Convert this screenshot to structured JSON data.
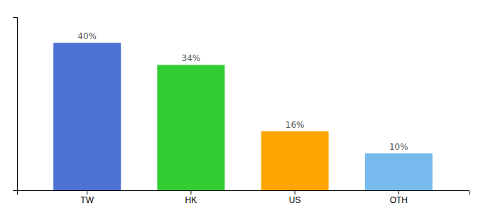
{
  "chart_data": {
    "type": "bar",
    "categories": [
      "TW",
      "HK",
      "US",
      "OTH"
    ],
    "values": [
      40,
      34,
      16,
      10
    ],
    "value_labels": [
      "40%",
      "34%",
      "16%",
      "10%"
    ],
    "data_labels": true,
    "colors": [
      "#4B72D4",
      "#33CC33",
      "#FFA500",
      "#77BBEE"
    ],
    "ylim": [
      0,
      47
    ],
    "tick_labels": "x"
  }
}
